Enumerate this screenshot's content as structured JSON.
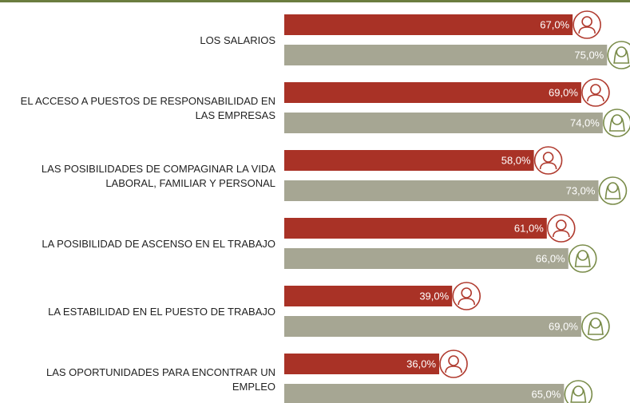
{
  "chart_data": {
    "type": "bar",
    "orientation": "horizontal",
    "categories": [
      "LOS SALARIOS",
      "EL ACCESO A PUESTOS DE RESPONSABILIDAD EN\nLAS EMPRESAS",
      "LAS POSIBILIDADES DE COMPAGINAR LA VIDA\nLABORAL, FAMILIAR Y PERSONAL",
      "LA POSIBILIDAD DE ASCENSO EN EL TRABAJO",
      "LA ESTABILIDAD EN EL PUESTO DE TRABAJO",
      "LAS OPORTUNIDADES PARA ENCONTRAR UN\nEMPLEO"
    ],
    "series": [
      {
        "color": "#a93226",
        "values": [
          67,
          69,
          58,
          61,
          39,
          36
        ],
        "value_labels": [
          "67,0%",
          "69,0%",
          "58,0%",
          "61,0%",
          "39,0%",
          "36,0%"
        ]
      },
      {
        "color": "#a6a693",
        "values": [
          75,
          74,
          73,
          66,
          69,
          65
        ],
        "value_labels": [
          "75,0%",
          "74,0%",
          "73,0%",
          "66,0%",
          "69,0%",
          "65,0%"
        ]
      }
    ],
    "xlim": [
      0,
      100
    ]
  }
}
